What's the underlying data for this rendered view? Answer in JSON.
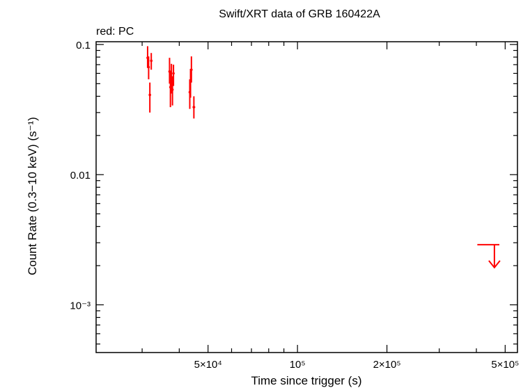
{
  "chart_data": {
    "type": "scatter",
    "title": "Swift/XRT data of GRB 160422A",
    "legend_text": "red: PC",
    "legend_placement": "top-left",
    "xlabel": "Time since trigger (s)",
    "ylabel": "Count Rate (0.3−10 keV) (s⁻¹)",
    "x_scale": "log",
    "y_scale": "log",
    "xlim": [
      21000,
      550000
    ],
    "ylim": [
      0.00043,
      0.105
    ],
    "grid": false,
    "x_ticks": [
      {
        "value": 50000,
        "label": "5×10⁴"
      },
      {
        "value": 100000,
        "label": "10⁵"
      },
      {
        "value": 200000,
        "label": "2×10⁵"
      },
      {
        "value": 500000,
        "label": "5×10⁵"
      }
    ],
    "y_ticks": [
      {
        "value": 0.1,
        "label": "0.1"
      },
      {
        "value": 0.01,
        "label": "0.01"
      },
      {
        "value": 0.001,
        "label": "10⁻³"
      }
    ],
    "series": [
      {
        "name": "PC",
        "color": "#ff0000",
        "points": [
          {
            "x": 31300,
            "y": 0.079,
            "xerr": [
              200,
              200
            ],
            "yerr": [
              0.066,
              0.097
            ]
          },
          {
            "x": 31550,
            "y": 0.067,
            "xerr": [
              180,
              180
            ],
            "yerr": [
              0.054,
              0.081
            ]
          },
          {
            "x": 31850,
            "y": 0.041,
            "xerr": [
              200,
              200
            ],
            "yerr": [
              0.03,
              0.051
            ]
          },
          {
            "x": 32200,
            "y": 0.075,
            "xerr": [
              250,
              250
            ],
            "yerr": [
              0.064,
              0.086
            ]
          },
          {
            "x": 37100,
            "y": 0.062,
            "xerr": [
              200,
              200
            ],
            "yerr": [
              0.05,
              0.079
            ]
          },
          {
            "x": 37350,
            "y": 0.047,
            "xerr": [
              180,
              180
            ],
            "yerr": [
              0.033,
              0.063
            ]
          },
          {
            "x": 37650,
            "y": 0.056,
            "xerr": [
              180,
              180
            ],
            "yerr": [
              0.042,
              0.071
            ]
          },
          {
            "x": 37950,
            "y": 0.045,
            "xerr": [
              180,
              180
            ],
            "yerr": [
              0.034,
              0.057
            ]
          },
          {
            "x": 38250,
            "y": 0.06,
            "xerr": [
              180,
              180
            ],
            "yerr": [
              0.048,
              0.07
            ]
          },
          {
            "x": 43400,
            "y": 0.043,
            "xerr": [
              200,
              200
            ],
            "yerr": [
              0.032,
              0.054
            ]
          },
          {
            "x": 43650,
            "y": 0.052,
            "xerr": [
              180,
              180
            ],
            "yerr": [
              0.039,
              0.065
            ]
          },
          {
            "x": 43950,
            "y": 0.064,
            "xerr": [
              200,
              200
            ],
            "yerr": [
              0.051,
              0.081
            ]
          },
          {
            "x": 44800,
            "y": 0.033,
            "xerr": [
              450,
              450
            ],
            "yerr": [
              0.027,
              0.04
            ]
          }
        ]
      }
    ],
    "upper_limits": [
      {
        "x": 460000,
        "y": 0.0029,
        "xerr": [
          57000,
          18000
        ],
        "color": "#ff0000"
      }
    ]
  }
}
